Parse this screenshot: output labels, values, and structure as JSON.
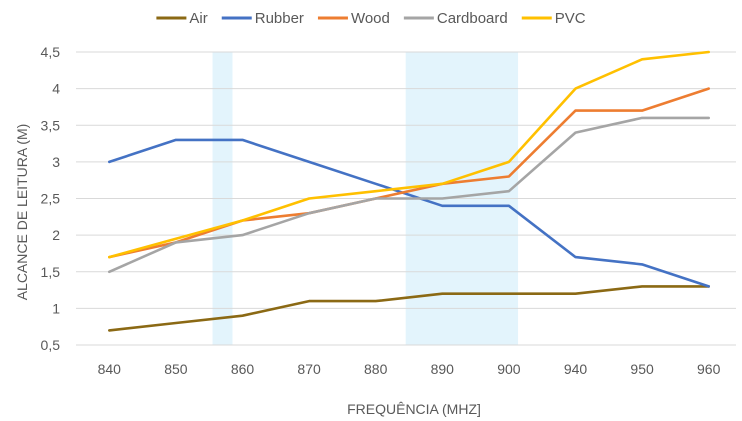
{
  "chart_data": {
    "type": "line",
    "categories": [
      "840",
      "850",
      "860",
      "870",
      "880",
      "890",
      "900",
      "940",
      "950",
      "960"
    ],
    "xlabel": "FREQUÊNCIA (MHZ]",
    "ylabel": "ALCANCE DE LEITURA (M)",
    "ylim": [
      0.5,
      4.5
    ],
    "yticks": [
      0.5,
      1,
      1.5,
      2,
      2.5,
      3,
      3.5,
      4,
      4.5
    ],
    "ytick_labels": [
      "0,5",
      "1",
      "1,5",
      "2",
      "2,5",
      "3",
      "3,5",
      "4",
      "4,5"
    ],
    "grid": "horizontal",
    "legend_position": "top",
    "highlight_bands": [
      {
        "x_start": 855.5,
        "x_end": 858.5,
        "color": "#e3f4fc"
      },
      {
        "x_start": 884.5,
        "x_end": 905.5,
        "color": "#e3f4fc"
      }
    ],
    "series": [
      {
        "name": "Air",
        "color": "#8B6914",
        "values": [
          0.7,
          0.8,
          0.9,
          1.1,
          1.1,
          1.2,
          1.2,
          1.2,
          1.3,
          1.3
        ]
      },
      {
        "name": "Rubber",
        "color": "#4472C4",
        "values": [
          3.0,
          3.3,
          3.3,
          3.0,
          2.7,
          2.4,
          2.4,
          1.7,
          1.6,
          1.3
        ]
      },
      {
        "name": "Wood",
        "color": "#ED7D31",
        "values": [
          1.7,
          1.9,
          2.2,
          2.3,
          2.5,
          2.7,
          2.8,
          3.7,
          3.7,
          4.0
        ]
      },
      {
        "name": "Cardboard",
        "color": "#A5A5A5",
        "values": [
          1.5,
          1.9,
          2.0,
          2.3,
          2.5,
          2.5,
          2.6,
          3.4,
          3.6,
          3.6
        ]
      },
      {
        "name": "PVC",
        "color": "#FFC000",
        "values": [
          1.7,
          1.95,
          2.2,
          2.5,
          2.6,
          2.7,
          3.0,
          4.0,
          4.4,
          4.5
        ]
      }
    ]
  }
}
